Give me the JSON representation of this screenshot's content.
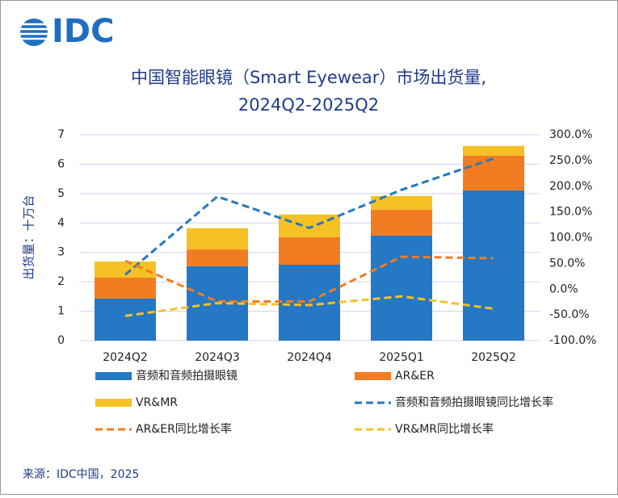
{
  "logo": "IDC",
  "chart_data": {
    "type": "bar-line",
    "title": [
      "中国智能眼镜（Smart Eyewear）市场出货量,",
      "2024Q2-2025Q2"
    ],
    "ylabel": "出货量：十万台",
    "categories": [
      "2024Q2",
      "2024Q3",
      "2024Q4",
      "2025Q1",
      "2025Q2"
    ],
    "ylim": [
      0,
      7
    ],
    "yticks": [
      0,
      1,
      2,
      3,
      4,
      5,
      6,
      7
    ],
    "y2lim": [
      -100,
      300
    ],
    "y2ticks": [
      {
        "value": -100,
        "label": "-100.0%"
      },
      {
        "value": -50,
        "label": "-50.0%"
      },
      {
        "value": 0,
        "label": "0.0%"
      },
      {
        "value": 50,
        "label": "50.0%"
      },
      {
        "value": 100,
        "label": "100.0%"
      },
      {
        "value": 150,
        "label": "150.0%"
      },
      {
        "value": 200,
        "label": "200.0%"
      },
      {
        "value": 250,
        "label": "250.0%"
      },
      {
        "value": 300,
        "label": "300.0%"
      }
    ],
    "grid": true,
    "series": [
      {
        "name": "音频和音频拍摄眼镜",
        "type": "bar",
        "color": "#2478c4",
        "values": [
          1.43,
          2.53,
          2.58,
          3.57,
          5.11
        ]
      },
      {
        "name": "AR&ER",
        "type": "bar",
        "color": "#f27c22",
        "values": [
          0.71,
          0.57,
          0.94,
          0.88,
          1.18
        ]
      },
      {
        "name": "VR&MR",
        "type": "bar",
        "color": "#f5c124",
        "values": [
          0.55,
          0.72,
          0.77,
          0.47,
          0.33
        ]
      },
      {
        "name": "音频和音频拍摄眼镜同比增长率",
        "type": "line",
        "axis": "y2",
        "color": "#2478c4",
        "values": [
          28,
          180,
          119,
          193,
          254
        ]
      },
      {
        "name": "AR&ER同比增长率",
        "type": "line",
        "axis": "y2",
        "color": "#f27c22",
        "values": [
          55,
          -24,
          -24,
          63,
          60
        ]
      },
      {
        "name": "VR&MR同比增长率",
        "type": "line",
        "axis": "y2",
        "color": "#f5c124",
        "values": [
          -52,
          -27,
          -31,
          -14,
          -38
        ]
      }
    ],
    "source": "来源：IDC中国，2025"
  }
}
